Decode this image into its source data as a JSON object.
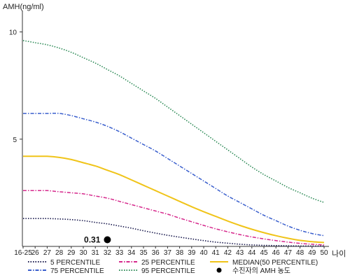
{
  "chart_data": {
    "type": "line",
    "ylabel": "AMH(ng/ml)",
    "xlabel": "나이",
    "x_tick_labels": [
      "16-25",
      "26",
      "27",
      "28",
      "29",
      "30",
      "31",
      "32",
      "33",
      "34",
      "35",
      "36",
      "37",
      "38",
      "39",
      "40",
      "41",
      "42",
      "43",
      "44",
      "45",
      "46",
      "47",
      "48",
      "49",
      "50"
    ],
    "y_ticks": [
      5,
      10
    ],
    "ylim": [
      0,
      11
    ],
    "grid": false,
    "legend_placement": "bottom",
    "series": [
      {
        "name": "95 PERCENTILE",
        "color": "#2e8b57",
        "dash": "dotted",
        "values": [
          9.6,
          9.5,
          9.4,
          9.25,
          9.05,
          8.8,
          8.55,
          8.25,
          7.95,
          7.6,
          7.25,
          6.9,
          6.5,
          6.1,
          5.7,
          5.3,
          4.9,
          4.5,
          4.1,
          3.7,
          3.35,
          3.05,
          2.75,
          2.5,
          2.25,
          2.05
        ]
      },
      {
        "name": "75 PERCENTILE",
        "color": "#3a5fcd",
        "dash": "dashdot",
        "values": [
          6.2,
          6.2,
          6.2,
          6.2,
          6.1,
          5.95,
          5.8,
          5.6,
          5.35,
          5.05,
          4.75,
          4.45,
          4.1,
          3.75,
          3.4,
          3.05,
          2.7,
          2.35,
          2.05,
          1.75,
          1.45,
          1.2,
          0.95,
          0.75,
          0.6,
          0.5
        ]
      },
      {
        "name": "MEDIAN(50 PERCENTILE)",
        "color": "#f0c419",
        "dash": "solid",
        "values": [
          4.2,
          4.2,
          4.2,
          4.15,
          4.05,
          3.9,
          3.75,
          3.55,
          3.35,
          3.1,
          2.85,
          2.6,
          2.35,
          2.1,
          1.85,
          1.62,
          1.4,
          1.18,
          0.98,
          0.8,
          0.64,
          0.5,
          0.38,
          0.28,
          0.22,
          0.18
        ]
      },
      {
        "name": "25 PERCENTILE",
        "color": "#d6288c",
        "dash": "dashdot",
        "values": [
          2.6,
          2.6,
          2.6,
          2.55,
          2.5,
          2.45,
          2.35,
          2.25,
          2.1,
          1.95,
          1.8,
          1.65,
          1.5,
          1.32,
          1.15,
          0.98,
          0.82,
          0.68,
          0.55,
          0.44,
          0.35,
          0.27,
          0.2,
          0.14,
          0.1,
          0.07
        ]
      },
      {
        "name": "5 PERCENTILE",
        "color": "#1a1a4e",
        "dash": "dotted",
        "values": [
          1.3,
          1.3,
          1.3,
          1.28,
          1.25,
          1.2,
          1.12,
          1.05,
          0.95,
          0.85,
          0.73,
          0.62,
          0.52,
          0.43,
          0.35,
          0.27,
          0.2,
          0.15,
          0.1,
          0.07,
          0.05,
          0.04,
          0.03,
          0.02,
          0.02,
          0.02
        ]
      }
    ],
    "marker": {
      "name": "수진자의 AMH 농도",
      "x_label": "32",
      "value": 0.31,
      "label": "0.31",
      "color": "#000000"
    },
    "legend_order": [
      "5 PERCENTILE",
      "25 PERCENTILE",
      "MEDIAN(50 PERCENTILE)",
      "75 PERCENTILE",
      "95 PERCENTILE",
      "수진자의 AMH 농도"
    ]
  }
}
